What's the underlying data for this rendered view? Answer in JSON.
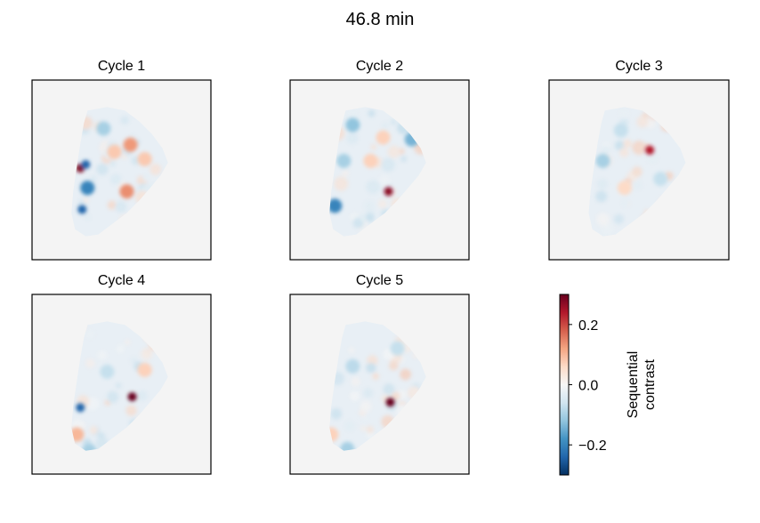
{
  "chart_data": {
    "type": "heatmap",
    "title": "46.8 min",
    "panels": [
      {
        "title": "Cycle 1",
        "blobs": [
          {
            "x": 0.27,
            "y": 0.49,
            "v": 0.28
          },
          {
            "x": 0.3,
            "y": 0.47,
            "v": -0.24
          },
          {
            "x": 0.31,
            "y": 0.6,
            "v": -0.2
          },
          {
            "x": 0.28,
            "y": 0.72,
            "v": -0.24
          },
          {
            "x": 0.55,
            "y": 0.36,
            "v": 0.13
          },
          {
            "x": 0.53,
            "y": 0.62,
            "v": 0.14
          },
          {
            "x": 0.46,
            "y": 0.4,
            "v": 0.08
          },
          {
            "x": 0.63,
            "y": 0.44,
            "v": 0.08
          },
          {
            "x": 0.4,
            "y": 0.27,
            "v": -0.1
          }
        ]
      },
      {
        "title": "Cycle 2",
        "blobs": [
          {
            "x": 0.55,
            "y": 0.62,
            "v": 0.27
          },
          {
            "x": 0.25,
            "y": 0.7,
            "v": -0.2
          },
          {
            "x": 0.35,
            "y": 0.25,
            "v": -0.12
          },
          {
            "x": 0.3,
            "y": 0.45,
            "v": -0.1
          },
          {
            "x": 0.68,
            "y": 0.33,
            "v": -0.14
          },
          {
            "x": 0.45,
            "y": 0.45,
            "v": 0.07
          },
          {
            "x": 0.52,
            "y": 0.32,
            "v": 0.07
          }
        ]
      },
      {
        "title": "Cycle 3",
        "blobs": [
          {
            "x": 0.56,
            "y": 0.39,
            "v": 0.24
          },
          {
            "x": 0.3,
            "y": 0.45,
            "v": -0.1
          },
          {
            "x": 0.42,
            "y": 0.6,
            "v": 0.06
          },
          {
            "x": 0.62,
            "y": 0.55,
            "v": -0.07
          },
          {
            "x": 0.4,
            "y": 0.28,
            "v": -0.07
          }
        ]
      },
      {
        "title": "Cycle 4",
        "blobs": [
          {
            "x": 0.56,
            "y": 0.57,
            "v": 0.3
          },
          {
            "x": 0.27,
            "y": 0.63,
            "v": -0.24
          },
          {
            "x": 0.25,
            "y": 0.78,
            "v": 0.1
          },
          {
            "x": 0.32,
            "y": 0.87,
            "v": -0.1
          },
          {
            "x": 0.42,
            "y": 0.43,
            "v": -0.07
          },
          {
            "x": 0.63,
            "y": 0.42,
            "v": 0.07
          }
        ]
      },
      {
        "title": "Cycle 5",
        "blobs": [
          {
            "x": 0.56,
            "y": 0.6,
            "v": 0.3
          },
          {
            "x": 0.23,
            "y": 0.78,
            "v": 0.07
          },
          {
            "x": 0.32,
            "y": 0.86,
            "v": -0.1
          },
          {
            "x": 0.35,
            "y": 0.4,
            "v": -0.08
          },
          {
            "x": 0.6,
            "y": 0.3,
            "v": -0.07
          }
        ]
      }
    ],
    "colorbar": {
      "label_lines": [
        "Sequential",
        "contrast"
      ],
      "ticks": [
        0.2,
        0.0,
        -0.2
      ],
      "tick_labels": [
        "0.2",
        "0.0",
        "−0.2"
      ],
      "vmin": -0.3,
      "vmax": 0.3,
      "colormap": "RdBu_r"
    },
    "colors": {
      "background": "#f4f4f4",
      "neg_extreme": "#053061",
      "neutral": "#f7f7f7",
      "pos_extreme": "#67001f"
    }
  }
}
